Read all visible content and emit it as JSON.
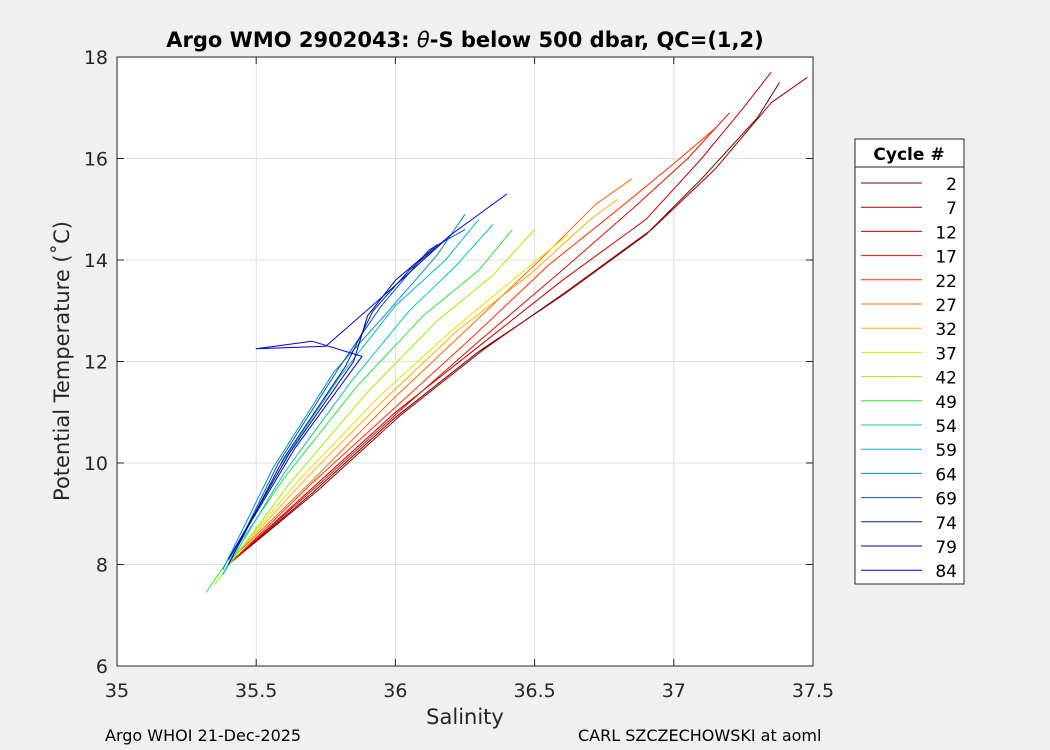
{
  "footer": {
    "left": "Argo WHOI 21-Dec-2025",
    "right": "CARL SZCZECHOWSKI at aoml"
  },
  "chart_data": {
    "type": "line",
    "title_prefix": "Argo WMO 2902043: ",
    "title_symbol": "θ",
    "title_suffix": "-S below 500 dbar,  QC=(1,2)",
    "xlabel": "Salinity",
    "ylabel": "Potential Temperature (˚C)",
    "xlim": [
      35,
      37.5
    ],
    "ylim": [
      6,
      18
    ],
    "xticks": [
      35,
      35.5,
      36,
      36.5,
      37,
      37.5
    ],
    "xtick_labels": [
      "35",
      "35.5",
      "36",
      "36.5",
      "37",
      "37.5"
    ],
    "yticks": [
      6,
      8,
      10,
      12,
      14,
      16,
      18
    ],
    "ytick_labels": [
      "6",
      "8",
      "10",
      "12",
      "14",
      "16",
      "18"
    ],
    "grid": true,
    "legend": {
      "title": "Cycle #",
      "placement": "outside-right"
    },
    "series": [
      {
        "name": "2",
        "color": "#700000",
        "points": [
          [
            35.4,
            8.0
          ],
          [
            35.7,
            9.4
          ],
          [
            36.0,
            10.9
          ],
          [
            36.3,
            12.2
          ],
          [
            36.6,
            13.3
          ],
          [
            36.9,
            14.5
          ],
          [
            37.1,
            15.6
          ],
          [
            37.3,
            16.8
          ],
          [
            37.38,
            17.5
          ]
        ]
      },
      {
        "name": "7",
        "color": "#9a0000",
        "points": [
          [
            35.4,
            8.0
          ],
          [
            35.72,
            9.45
          ],
          [
            36.02,
            10.95
          ],
          [
            36.32,
            12.25
          ],
          [
            36.62,
            13.4
          ],
          [
            36.92,
            14.6
          ],
          [
            37.15,
            15.8
          ],
          [
            37.35,
            17.1
          ],
          [
            37.48,
            17.6
          ]
        ]
      },
      {
        "name": "12",
        "color": "#c00000",
        "points": [
          [
            35.41,
            8.05
          ],
          [
            35.7,
            9.5
          ],
          [
            36.0,
            11.0
          ],
          [
            36.3,
            12.3
          ],
          [
            36.6,
            13.6
          ],
          [
            36.9,
            14.8
          ],
          [
            37.1,
            16.0
          ],
          [
            37.25,
            17.0
          ],
          [
            37.35,
            17.7
          ]
        ]
      },
      {
        "name": "17",
        "color": "#e01000",
        "points": [
          [
            35.42,
            8.1
          ],
          [
            35.72,
            9.55
          ],
          [
            36.02,
            11.05
          ],
          [
            36.3,
            12.4
          ],
          [
            36.6,
            13.8
          ],
          [
            36.85,
            15.0
          ],
          [
            37.05,
            16.0
          ],
          [
            37.2,
            16.9
          ]
        ]
      },
      {
        "name": "22",
        "color": "#ff3000",
        "points": [
          [
            35.42,
            8.1
          ],
          [
            35.7,
            9.6
          ],
          [
            36.0,
            11.1
          ],
          [
            36.28,
            12.5
          ],
          [
            36.55,
            13.9
          ],
          [
            36.8,
            15.0
          ],
          [
            37.0,
            15.9
          ],
          [
            37.15,
            16.6
          ]
        ]
      },
      {
        "name": "27",
        "color": "#ff6800",
        "points": [
          [
            35.42,
            8.15
          ],
          [
            35.7,
            9.65
          ],
          [
            35.98,
            11.2
          ],
          [
            36.25,
            12.6
          ],
          [
            36.5,
            13.9
          ],
          [
            36.72,
            15.1
          ],
          [
            36.85,
            15.6
          ]
        ]
      },
      {
        "name": "32",
        "color": "#ffb000",
        "points": [
          [
            35.42,
            8.15
          ],
          [
            35.68,
            9.7
          ],
          [
            35.96,
            11.25
          ],
          [
            36.22,
            12.6
          ],
          [
            36.48,
            13.7
          ],
          [
            36.7,
            14.8
          ],
          [
            36.8,
            15.2
          ]
        ]
      },
      {
        "name": "37",
        "color": "#e8e000",
        "points": [
          [
            35.41,
            8.1
          ],
          [
            35.66,
            9.7
          ],
          [
            35.94,
            11.3
          ],
          [
            36.2,
            12.6
          ],
          [
            36.42,
            13.6
          ],
          [
            36.62,
            14.5
          ]
        ]
      },
      {
        "name": "42",
        "color": "#a0f000",
        "points": [
          [
            35.35,
            7.6
          ],
          [
            35.62,
            9.6
          ],
          [
            35.9,
            11.4
          ],
          [
            36.15,
            12.8
          ],
          [
            36.35,
            13.7
          ],
          [
            36.5,
            14.6
          ]
        ]
      },
      {
        "name": "49",
        "color": "#30e040",
        "points": [
          [
            35.32,
            7.45
          ],
          [
            35.6,
            9.7
          ],
          [
            35.86,
            11.5
          ],
          [
            36.1,
            12.9
          ],
          [
            36.3,
            13.8
          ],
          [
            36.42,
            14.6
          ]
        ]
      },
      {
        "name": "54",
        "color": "#00d0a0",
        "points": [
          [
            35.38,
            7.8
          ],
          [
            35.6,
            9.8
          ],
          [
            35.84,
            11.6
          ],
          [
            36.05,
            13.0
          ],
          [
            36.22,
            13.9
          ],
          [
            36.35,
            14.7
          ]
        ]
      },
      {
        "name": "59",
        "color": "#00b8d8",
        "points": [
          [
            35.38,
            7.8
          ],
          [
            35.58,
            9.9
          ],
          [
            35.8,
            11.7
          ],
          [
            36.0,
            13.1
          ],
          [
            36.18,
            14.0
          ],
          [
            36.3,
            14.8
          ]
        ]
      },
      {
        "name": "64",
        "color": "#0090c8",
        "points": [
          [
            35.38,
            7.9
          ],
          [
            35.56,
            9.9
          ],
          [
            35.78,
            11.8
          ],
          [
            35.96,
            12.9
          ],
          [
            36.15,
            14.1
          ],
          [
            36.25,
            14.9
          ]
        ]
      },
      {
        "name": "69",
        "color": "#0058b0",
        "points": [
          [
            35.4,
            8.0
          ],
          [
            35.58,
            10.0
          ],
          [
            35.8,
            11.9
          ],
          [
            35.95,
            13.1
          ],
          [
            36.12,
            14.2
          ],
          [
            36.25,
            14.6
          ]
        ]
      },
      {
        "name": "74",
        "color": "#0020a0",
        "points": [
          [
            35.4,
            8.0
          ],
          [
            35.6,
            10.1
          ],
          [
            35.82,
            11.9
          ],
          [
            35.92,
            13.0
          ],
          [
            36.05,
            13.8
          ],
          [
            36.2,
            14.5
          ]
        ]
      },
      {
        "name": "79",
        "color": "#00009a",
        "points": [
          [
            35.4,
            8.1
          ],
          [
            35.62,
            10.2
          ],
          [
            35.85,
            12.0
          ],
          [
            35.9,
            12.9
          ],
          [
            36.0,
            13.6
          ],
          [
            36.15,
            14.3
          ]
        ]
      },
      {
        "name": "84",
        "color": "#0000e0",
        "points": [
          [
            35.4,
            8.1
          ],
          [
            35.64,
            10.3
          ],
          [
            35.88,
            12.1
          ],
          [
            35.7,
            12.4
          ],
          [
            35.5,
            12.25
          ],
          [
            35.75,
            12.3
          ],
          [
            36.0,
            13.5
          ],
          [
            36.2,
            14.5
          ],
          [
            36.4,
            15.3
          ]
        ]
      }
    ]
  }
}
